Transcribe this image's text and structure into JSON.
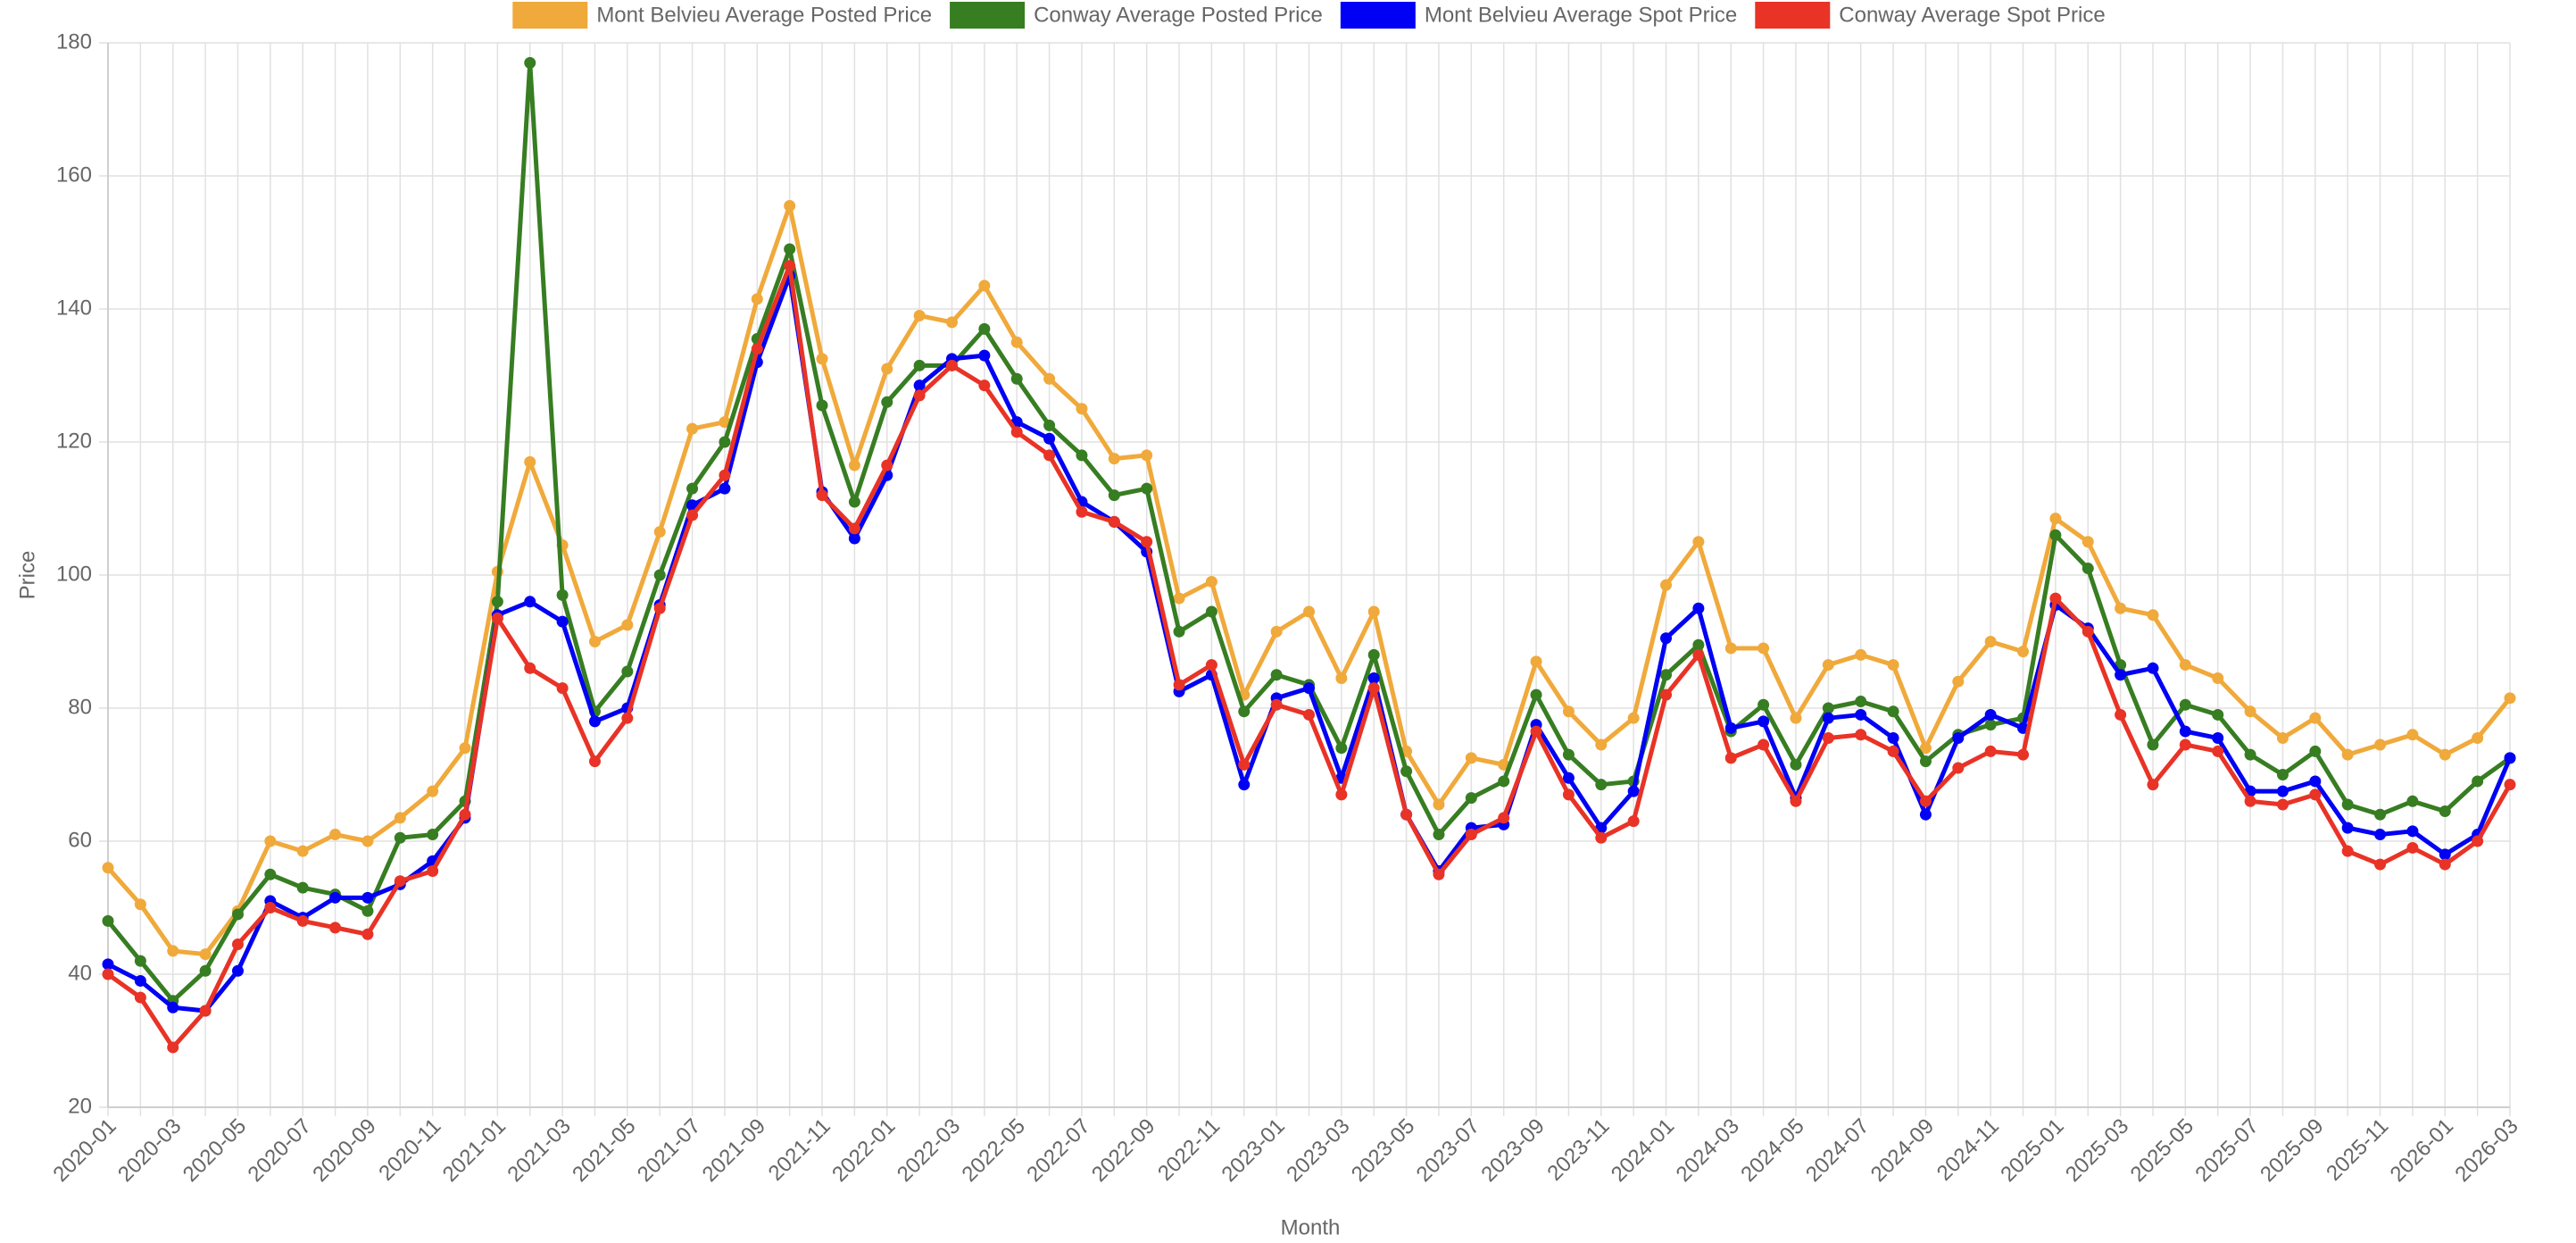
{
  "chart_data": {
    "type": "line",
    "x_label": "Month",
    "y_label": "Price",
    "categories": [
      "2020-01",
      null,
      "2020-03",
      null,
      "2020-05",
      null,
      "2020-07",
      null,
      "2020-09",
      null,
      "2020-11",
      null,
      "2021-01",
      null,
      "2021-03",
      null,
      "2021-05",
      null,
      "2021-07",
      null,
      "2021-09",
      null,
      "2021-11",
      null,
      "2022-01",
      null,
      "2022-03",
      null,
      "2022-05",
      null,
      "2022-07",
      null,
      "2022-09",
      null,
      "2022-11",
      null,
      "2023-01",
      null,
      "2023-03",
      null,
      "2023-05",
      null,
      "2023-07",
      null,
      "2023-09",
      null,
      "2023-11",
      null,
      "2024-01",
      null,
      "2024-03",
      null,
      "2024-05",
      null,
      "2024-07",
      null,
      "2024-09",
      null,
      "2024-11",
      null,
      "2025-01",
      null,
      "2025-03",
      null,
      "2025-05",
      null,
      "2025-07",
      null,
      "2025-09",
      null,
      "2025-11",
      null,
      "2026-01",
      null,
      "2026-03"
    ],
    "ylim": [
      20,
      180
    ],
    "yticks": [
      20,
      40,
      60,
      80,
      100,
      120,
      140,
      160,
      180
    ],
    "grid": true,
    "legend": "top",
    "series": [
      {
        "name": "Mont Belvieu Average Posted Price",
        "color": "#f0a93b",
        "values": [
          56,
          50.5,
          43.5,
          43,
          49.5,
          60,
          58.5,
          61,
          60,
          63.5,
          67.5,
          74,
          100.5,
          117,
          104.5,
          90,
          92.5,
          106.5,
          122,
          123,
          141.5,
          155.5,
          132.5,
          116.5,
          131,
          139,
          138,
          143.5,
          135,
          129.5,
          125,
          117.5,
          118,
          96.5,
          99,
          82,
          91.5,
          94.5,
          84.5,
          94.5,
          73.5,
          65.5,
          72.5,
          71.5,
          87,
          79.5,
          74.5,
          78.5,
          98.5,
          105,
          89,
          89,
          78.5,
          86.5,
          88,
          86.5,
          74,
          84,
          90,
          88.5,
          108.5,
          105,
          95,
          94,
          86.5,
          84.5,
          79.5,
          75.5,
          78.5,
          73,
          74.5,
          76,
          73,
          75.5,
          81.5
        ]
      },
      {
        "name": "Conway Average Posted Price",
        "color": "#377d22",
        "values": [
          48,
          42,
          36,
          40.5,
          49,
          55,
          53,
          52,
          49.5,
          60.5,
          61,
          66,
          96,
          177,
          97,
          79.5,
          85.5,
          100,
          113,
          120,
          135.5,
          149,
          125.5,
          111,
          126,
          131.5,
          131.5,
          137,
          129.5,
          122.5,
          118,
          112,
          113,
          91.5,
          94.5,
          79.5,
          85,
          83.5,
          74,
          88,
          70.5,
          61,
          66.5,
          69,
          82,
          73,
          68.5,
          69,
          85,
          89.5,
          76.5,
          80.5,
          71.5,
          80,
          81,
          79.5,
          72,
          76,
          77.5,
          78.5,
          106,
          101,
          86.5,
          74.5,
          80.5,
          79,
          73,
          70,
          73.5,
          65.5,
          64,
          66,
          64.5,
          69,
          72.5
        ]
      },
      {
        "name": "Mont Belvieu Average Spot Price",
        "color": "#0000f5",
        "values": [
          41.5,
          39,
          35,
          34.5,
          40.5,
          51,
          48.5,
          51.5,
          51.5,
          53.5,
          57,
          63.5,
          94,
          96,
          93,
          78,
          80,
          95.5,
          110.5,
          113,
          132,
          145,
          112.5,
          105.5,
          115,
          128.5,
          132.5,
          133,
          123,
          120.5,
          111,
          108,
          103.5,
          82.5,
          85,
          68.5,
          81.5,
          83,
          69.5,
          84.5,
          64,
          55.5,
          62,
          62.5,
          77.5,
          69.5,
          62,
          67.5,
          90.5,
          95,
          77,
          78,
          66.5,
          78.5,
          79,
          75.5,
          64,
          75.5,
          79,
          77,
          95.5,
          92,
          85,
          86,
          76.5,
          75.5,
          67.5,
          67.5,
          69,
          62,
          61,
          61.5,
          58,
          61,
          72.5
        ]
      },
      {
        "name": "Conway Average Spot Price",
        "color": "#e83326",
        "values": [
          40,
          36.5,
          29,
          34.5,
          44.5,
          50,
          48,
          47,
          46,
          54,
          55.5,
          64,
          93.5,
          86,
          83,
          72,
          78.5,
          95,
          109,
          115,
          134,
          146.5,
          112,
          107,
          116.5,
          127,
          131.5,
          128.5,
          121.5,
          118,
          109.5,
          108,
          105,
          83.5,
          86.5,
          71.5,
          80.5,
          79,
          67,
          83,
          64,
          55,
          61,
          63.5,
          76.5,
          67,
          60.5,
          63,
          82,
          88,
          72.5,
          74.5,
          66,
          75.5,
          76,
          73.5,
          66,
          71,
          73.5,
          73,
          96.5,
          91.5,
          79,
          68.5,
          74.5,
          73.5,
          66,
          65.5,
          67,
          58.5,
          56.5,
          59,
          56.5,
          60,
          68.5
        ]
      }
    ]
  }
}
